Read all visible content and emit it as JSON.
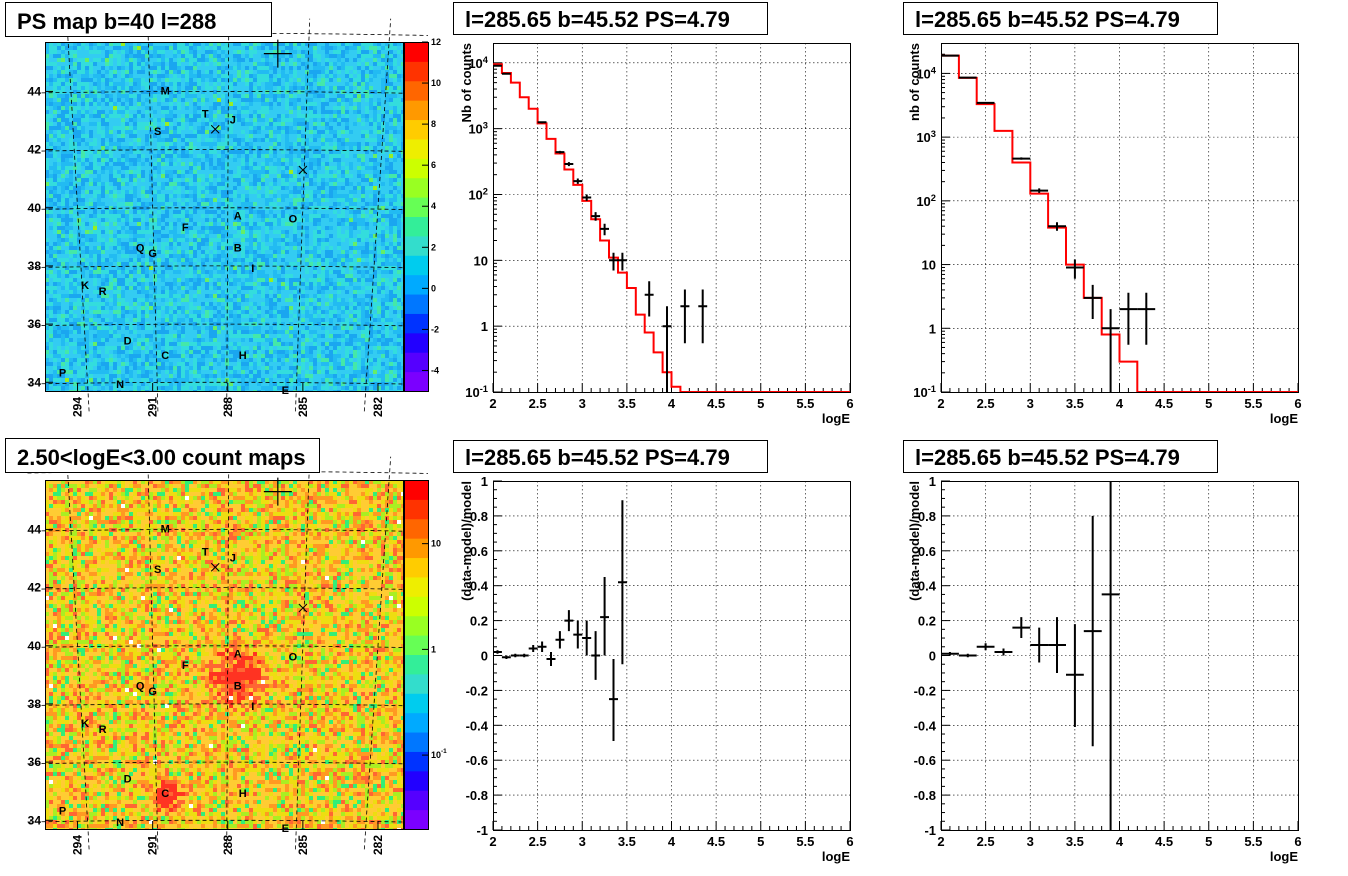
{
  "page": {
    "background": "#ffffff"
  },
  "chart_data": [
    {
      "id": "map_ps",
      "type": "heatmap",
      "title": "PS map b=40 l=288",
      "y_ticks": [
        "34",
        "36",
        "38",
        "40",
        "42",
        "44"
      ],
      "x_ticks": [
        "294",
        "291",
        "288",
        "285",
        "282"
      ],
      "colorbar": {
        "scale": "linear",
        "ticks": [
          "-4",
          "-2",
          "0",
          "2",
          "4",
          "6",
          "8",
          "10",
          "12"
        ],
        "range": [
          -5,
          12
        ]
      },
      "base_color": "#33ccf2",
      "sources": [
        {
          "label": "M",
          "l": 290.5,
          "b": 43.9
        },
        {
          "label": "T",
          "l": 288.9,
          "b": 43.1
        },
        {
          "label": "J",
          "l": 287.8,
          "b": 42.9
        },
        {
          "label": "S",
          "l": 290.8,
          "b": 42.5
        },
        {
          "label": "A",
          "l": 287.6,
          "b": 39.6
        },
        {
          "label": "O",
          "l": 285.4,
          "b": 39.5
        },
        {
          "label": "F",
          "l": 289.7,
          "b": 39.2
        },
        {
          "label": "Q",
          "l": 291.5,
          "b": 38.5
        },
        {
          "label": "G",
          "l": 291.0,
          "b": 38.3
        },
        {
          "label": "B",
          "l": 287.6,
          "b": 38.5
        },
        {
          "label": "I",
          "l": 287.0,
          "b": 37.8
        },
        {
          "label": "K",
          "l": 293.7,
          "b": 37.2
        },
        {
          "label": "R",
          "l": 293.0,
          "b": 37.0
        },
        {
          "label": "D",
          "l": 292.0,
          "b": 35.3
        },
        {
          "label": "C",
          "l": 290.5,
          "b": 34.8
        },
        {
          "label": "H",
          "l": 287.4,
          "b": 34.8
        },
        {
          "label": "P",
          "l": 294.6,
          "b": 34.2
        },
        {
          "label": "N",
          "l": 292.3,
          "b": 33.8
        },
        {
          "label": "E",
          "l": 285.7,
          "b": 33.6
        }
      ],
      "markers": [
        {
          "kind": "x",
          "l": 288.5,
          "b": 42.7
        },
        {
          "kind": "x",
          "l": 285.0,
          "b": 41.3
        },
        {
          "kind": "plus",
          "l": 286.0,
          "b": 45.3
        }
      ]
    },
    {
      "id": "spec1",
      "type": "line",
      "title": "l=285.65 b=45.52 PS=4.79",
      "xlabel": "logE",
      "ylabel": "Nb of counts",
      "yscale": "log",
      "xlim": [
        2,
        6
      ],
      "ylim": [
        0.1,
        20000
      ],
      "x_ticks": [
        "2",
        "2.5",
        "3",
        "3.5",
        "4",
        "4.5",
        "5",
        "5.5",
        "6"
      ],
      "y_ticks": [
        "10^-1",
        "1",
        "10",
        "10^2",
        "10^3",
        "10^4"
      ],
      "series": [
        {
          "style": "step",
          "color": "#ff0000",
          "bins": [
            2.0,
            2.1,
            2.2,
            2.3,
            2.4,
            2.5,
            2.6,
            2.7,
            2.8,
            2.9,
            3.0,
            3.1,
            3.2,
            3.3,
            3.4,
            3.5,
            3.6,
            3.7,
            3.8,
            3.9,
            4.0,
            4.1,
            4.2,
            6.0
          ],
          "values": [
            9500,
            7000,
            5000,
            3000,
            2000,
            1200,
            700,
            420,
            240,
            140,
            80,
            42,
            20,
            11,
            6.5,
            3.8,
            1.5,
            0.8,
            0.4,
            0.2,
            0.12,
            0.1,
            0.1
          ]
        },
        {
          "style": "errorbar",
          "color": "#000000",
          "points": [
            {
              "x": 2.05,
              "y": 9000,
              "lo": 8900,
              "hi": 9100,
              "dx": 0.05
            },
            {
              "x": 2.15,
              "y": 6800,
              "lo": 6700,
              "hi": 6900,
              "dx": 0.05
            },
            {
              "x": 2.55,
              "y": 1250,
              "lo": 1200,
              "hi": 1300,
              "dx": 0.05
            },
            {
              "x": 2.75,
              "y": 440,
              "lo": 420,
              "hi": 460,
              "dx": 0.05
            },
            {
              "x": 2.85,
              "y": 290,
              "lo": 270,
              "hi": 310,
              "dx": 0.05
            },
            {
              "x": 2.95,
              "y": 160,
              "lo": 145,
              "hi": 175,
              "dx": 0.05
            },
            {
              "x": 3.05,
              "y": 90,
              "lo": 80,
              "hi": 100,
              "dx": 0.05
            },
            {
              "x": 3.15,
              "y": 47,
              "lo": 40,
              "hi": 54,
              "dx": 0.05
            },
            {
              "x": 3.25,
              "y": 30,
              "lo": 24,
              "hi": 36,
              "dx": 0.05
            },
            {
              "x": 3.35,
              "y": 10,
              "lo": 7,
              "hi": 13,
              "dx": 0.05
            },
            {
              "x": 3.45,
              "y": 10,
              "lo": 7,
              "hi": 13,
              "dx": 0.05
            },
            {
              "x": 3.75,
              "y": 3,
              "lo": 1.4,
              "hi": 4.8,
              "dx": 0.05
            },
            {
              "x": 3.95,
              "y": 1,
              "lo": 0.1,
              "hi": 2,
              "dx": 0.05
            },
            {
              "x": 4.15,
              "y": 2,
              "lo": 0.55,
              "hi": 3.6,
              "dx": 0.05
            },
            {
              "x": 4.35,
              "y": 2,
              "lo": 0.55,
              "hi": 3.6,
              "dx": 0.05
            }
          ]
        }
      ]
    },
    {
      "id": "spec2",
      "type": "line",
      "title": "l=285.65 b=45.52 PS=4.79",
      "xlabel": "logE",
      "ylabel": "nb of counts",
      "yscale": "log",
      "xlim": [
        2,
        6
      ],
      "ylim": [
        0.1,
        30000
      ],
      "x_ticks": [
        "2",
        "2.5",
        "3",
        "3.5",
        "4",
        "4.5",
        "5",
        "5.5",
        "6"
      ],
      "y_ticks": [
        "10^-1",
        "1",
        "10",
        "10^2",
        "10^3",
        "10^4"
      ],
      "series": [
        {
          "style": "step",
          "color": "#ff0000",
          "bins": [
            2.0,
            2.2,
            2.4,
            2.6,
            2.8,
            3.0,
            3.2,
            3.4,
            3.6,
            3.8,
            4.0,
            4.2,
            6.0
          ],
          "values": [
            19000,
            8500,
            3300,
            1250,
            400,
            130,
            38,
            10,
            3,
            0.8,
            0.3,
            0.1
          ]
        },
        {
          "style": "errorbar",
          "color": "#000000",
          "points": [
            {
              "x": 2.1,
              "y": 19000,
              "lo": 18800,
              "hi": 19200,
              "dx": 0.1
            },
            {
              "x": 2.3,
              "y": 8600,
              "lo": 8500,
              "hi": 8700,
              "dx": 0.1
            },
            {
              "x": 2.5,
              "y": 3450,
              "lo": 3380,
              "hi": 3520,
              "dx": 0.1
            },
            {
              "x": 2.9,
              "y": 460,
              "lo": 440,
              "hi": 480,
              "dx": 0.1
            },
            {
              "x": 3.1,
              "y": 145,
              "lo": 133,
              "hi": 157,
              "dx": 0.1
            },
            {
              "x": 3.3,
              "y": 40,
              "lo": 34,
              "hi": 46,
              "dx": 0.1
            },
            {
              "x": 3.5,
              "y": 9,
              "lo": 6,
              "hi": 12,
              "dx": 0.1
            },
            {
              "x": 3.7,
              "y": 3,
              "lo": 1.4,
              "hi": 4.8,
              "dx": 0.1
            },
            {
              "x": 3.9,
              "y": 1,
              "lo": 0.1,
              "hi": 2,
              "dx": 0.1
            },
            {
              "x": 4.1,
              "y": 2,
              "lo": 0.55,
              "hi": 3.6,
              "dx": 0.1
            },
            {
              "x": 4.3,
              "y": 2,
              "lo": 0.55,
              "hi": 3.6,
              "dx": 0.1
            }
          ]
        }
      ]
    },
    {
      "id": "map_count",
      "type": "heatmap",
      "title": "2.50<logE<3.00 count maps",
      "y_ticks": [
        "34",
        "36",
        "38",
        "40",
        "42",
        "44"
      ],
      "x_ticks": [
        "294",
        "291",
        "288",
        "285",
        "282"
      ],
      "colorbar": {
        "scale": "log",
        "ticks": [
          "10^-1",
          "1",
          "10"
        ],
        "range": [
          0.02,
          40
        ]
      },
      "base_color": "#ffcc33",
      "blobs": [
        {
          "l": 287.6,
          "b": 39.0,
          "r": 1.0
        },
        {
          "l": 290.5,
          "b": 34.9,
          "r": 0.6
        }
      ],
      "sources": [
        {
          "label": "M",
          "l": 290.5,
          "b": 43.9
        },
        {
          "label": "T",
          "l": 288.9,
          "b": 43.1
        },
        {
          "label": "J",
          "l": 287.8,
          "b": 42.9
        },
        {
          "label": "S",
          "l": 290.8,
          "b": 42.5
        },
        {
          "label": "A",
          "l": 287.6,
          "b": 39.6
        },
        {
          "label": "O",
          "l": 285.4,
          "b": 39.5
        },
        {
          "label": "F",
          "l": 289.7,
          "b": 39.2
        },
        {
          "label": "Q",
          "l": 291.5,
          "b": 38.5
        },
        {
          "label": "G",
          "l": 291.0,
          "b": 38.3
        },
        {
          "label": "B",
          "l": 287.6,
          "b": 38.5
        },
        {
          "label": "I",
          "l": 287.0,
          "b": 37.8
        },
        {
          "label": "K",
          "l": 293.7,
          "b": 37.2
        },
        {
          "label": "R",
          "l": 293.0,
          "b": 37.0
        },
        {
          "label": "D",
          "l": 292.0,
          "b": 35.3
        },
        {
          "label": "C",
          "l": 290.5,
          "b": 34.8
        },
        {
          "label": "H",
          "l": 287.4,
          "b": 34.8
        },
        {
          "label": "P",
          "l": 294.6,
          "b": 34.2
        },
        {
          "label": "N",
          "l": 292.3,
          "b": 33.8
        },
        {
          "label": "E",
          "l": 285.7,
          "b": 33.6
        }
      ],
      "markers": [
        {
          "kind": "x",
          "l": 288.5,
          "b": 42.7
        },
        {
          "kind": "x",
          "l": 285.0,
          "b": 41.3
        },
        {
          "kind": "plus",
          "l": 286.0,
          "b": 45.3
        }
      ]
    },
    {
      "id": "ratio1",
      "type": "scatter",
      "title": "l=285.65 b=45.52 PS=4.79",
      "xlabel": "logE",
      "ylabel": "(data-model)/model",
      "xlim": [
        2,
        6
      ],
      "ylim": [
        -1,
        1
      ],
      "x_ticks": [
        "2",
        "2.5",
        "3",
        "3.5",
        "4",
        "4.5",
        "5",
        "5.5",
        "6"
      ],
      "y_ticks": [
        "-1",
        "-0.8",
        "-0.6",
        "-0.4",
        "-0.2",
        "0",
        "0.2",
        "0.4",
        "0.6",
        "0.8",
        "1"
      ],
      "series": [
        {
          "style": "errorbar",
          "color": "#000000",
          "points": [
            {
              "x": 2.05,
              "y": 0.02,
              "lo": 0.01,
              "hi": 0.03,
              "dx": 0.05
            },
            {
              "x": 2.15,
              "y": -0.01,
              "lo": -0.02,
              "hi": 0.0,
              "dx": 0.05
            },
            {
              "x": 2.25,
              "y": 0.0,
              "lo": -0.01,
              "hi": 0.01,
              "dx": 0.05
            },
            {
              "x": 2.35,
              "y": 0.0,
              "lo": -0.01,
              "hi": 0.01,
              "dx": 0.05
            },
            {
              "x": 2.45,
              "y": 0.04,
              "lo": 0.02,
              "hi": 0.06,
              "dx": 0.05
            },
            {
              "x": 2.55,
              "y": 0.05,
              "lo": 0.02,
              "hi": 0.08,
              "dx": 0.05
            },
            {
              "x": 2.65,
              "y": -0.02,
              "lo": -0.06,
              "hi": 0.02,
              "dx": 0.05
            },
            {
              "x": 2.75,
              "y": 0.09,
              "lo": 0.04,
              "hi": 0.14,
              "dx": 0.05
            },
            {
              "x": 2.85,
              "y": 0.2,
              "lo": 0.14,
              "hi": 0.26,
              "dx": 0.05
            },
            {
              "x": 2.95,
              "y": 0.12,
              "lo": 0.04,
              "hi": 0.2,
              "dx": 0.05
            },
            {
              "x": 3.05,
              "y": 0.1,
              "lo": 0.0,
              "hi": 0.2,
              "dx": 0.05
            },
            {
              "x": 3.15,
              "y": 0.0,
              "lo": -0.14,
              "hi": 0.14,
              "dx": 0.05
            },
            {
              "x": 3.25,
              "y": 0.22,
              "lo": 0.0,
              "hi": 0.45,
              "dx": 0.05
            },
            {
              "x": 3.35,
              "y": -0.25,
              "lo": -0.49,
              "hi": -0.02,
              "dx": 0.05
            },
            {
              "x": 3.45,
              "y": 0.42,
              "lo": -0.05,
              "hi": 0.89,
              "dx": 0.05
            }
          ]
        }
      ]
    },
    {
      "id": "ratio2",
      "type": "scatter",
      "title": "l=285.65 b=45.52 PS=4.79",
      "xlabel": "logE",
      "ylabel": "(data-model)/model",
      "xlim": [
        2,
        6
      ],
      "ylim": [
        -1,
        1
      ],
      "x_ticks": [
        "2",
        "2.5",
        "3",
        "3.5",
        "4",
        "4.5",
        "5",
        "5.5",
        "6"
      ],
      "y_ticks": [
        "-1",
        "-0.8",
        "-0.6",
        "-0.4",
        "-0.2",
        "0",
        "0.2",
        "0.4",
        "0.6",
        "0.8",
        "1"
      ],
      "series": [
        {
          "style": "errorbar",
          "color": "#000000",
          "points": [
            {
              "x": 2.1,
              "y": 0.01,
              "lo": 0.0,
              "hi": 0.02,
              "dx": 0.1
            },
            {
              "x": 2.3,
              "y": 0.0,
              "lo": -0.01,
              "hi": 0.01,
              "dx": 0.1
            },
            {
              "x": 2.5,
              "y": 0.05,
              "lo": 0.03,
              "hi": 0.07,
              "dx": 0.1
            },
            {
              "x": 2.7,
              "y": 0.02,
              "lo": 0.0,
              "hi": 0.04,
              "dx": 0.1
            },
            {
              "x": 2.9,
              "y": 0.16,
              "lo": 0.1,
              "hi": 0.22,
              "dx": 0.1
            },
            {
              "x": 3.1,
              "y": 0.06,
              "lo": -0.04,
              "hi": 0.16,
              "dx": 0.1
            },
            {
              "x": 3.3,
              "y": 0.06,
              "lo": -0.1,
              "hi": 0.22,
              "dx": 0.1
            },
            {
              "x": 3.5,
              "y": -0.11,
              "lo": -0.41,
              "hi": 0.18,
              "dx": 0.1
            },
            {
              "x": 3.7,
              "y": 0.14,
              "lo": -0.52,
              "hi": 0.8,
              "dx": 0.1
            },
            {
              "x": 3.9,
              "y": 0.35,
              "lo": -1.0,
              "hi": 1.0,
              "dx": 0.1
            }
          ]
        }
      ]
    }
  ]
}
